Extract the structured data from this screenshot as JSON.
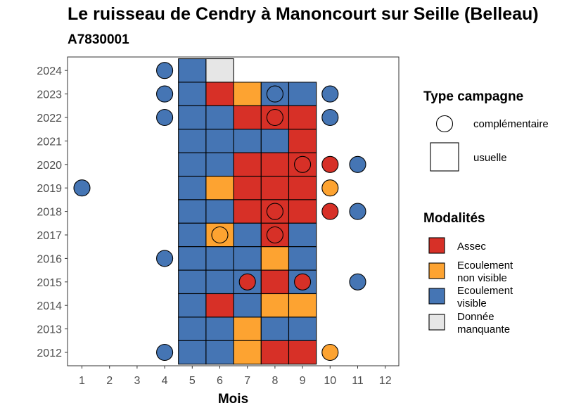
{
  "chart_data": {
    "type": "heatmap",
    "title": "Le ruisseau de Cendry à Manoncourt sur Seille (Belleau)",
    "subtitle": "A7830001",
    "xlabel": "Mois",
    "ylabel": "",
    "x_ticks": [
      "1",
      "2",
      "3",
      "4",
      "5",
      "6",
      "7",
      "8",
      "9",
      "10",
      "11",
      "12"
    ],
    "y_ticks": [
      "2012",
      "2013",
      "2014",
      "2015",
      "2016",
      "2017",
      "2018",
      "2019",
      "2020",
      "2021",
      "2022",
      "2023",
      "2024"
    ],
    "xlim": [
      0.5,
      12.5
    ],
    "ylim": [
      2011.5,
      2024.5
    ],
    "legend_placement": "right",
    "shape_legend": {
      "title": "Type campagne",
      "items": [
        {
          "key": "complementaire",
          "label": "complémentaire",
          "shape": "circle"
        },
        {
          "key": "usuelle",
          "label": "usuelle",
          "shape": "square"
        }
      ]
    },
    "color_legend": {
      "title": "Modalités",
      "items": [
        {
          "key": "assec",
          "label_line1": "Assec",
          "label_line2": "",
          "color": "#d73027"
        },
        {
          "key": "nonvisible",
          "label_line1": "Ecoulement",
          "label_line2": "non visible",
          "color": "#fda331"
        },
        {
          "key": "visible",
          "label_line1": "Ecoulement",
          "label_line2": "visible",
          "color": "#4575b4"
        },
        {
          "key": "manquante",
          "label_line1": "Donnée",
          "label_line2": "manquante",
          "color": "#e6e6e6"
        }
      ]
    },
    "usuelle": [
      {
        "year": 2024,
        "values": {
          "5": "visible",
          "6": "manquante"
        }
      },
      {
        "year": 2023,
        "values": {
          "5": "visible",
          "6": "assec",
          "7": "nonvisible",
          "8": "visible",
          "9": "visible"
        }
      },
      {
        "year": 2022,
        "values": {
          "5": "visible",
          "6": "visible",
          "7": "assec",
          "8": "assec",
          "9": "assec"
        }
      },
      {
        "year": 2021,
        "values": {
          "5": "visible",
          "6": "visible",
          "7": "visible",
          "8": "visible",
          "9": "assec"
        }
      },
      {
        "year": 2020,
        "values": {
          "5": "visible",
          "6": "visible",
          "7": "assec",
          "8": "assec",
          "9": "assec"
        }
      },
      {
        "year": 2019,
        "values": {
          "5": "visible",
          "6": "nonvisible",
          "7": "assec",
          "8": "assec",
          "9": "assec"
        }
      },
      {
        "year": 2018,
        "values": {
          "5": "visible",
          "6": "visible",
          "7": "assec",
          "8": "assec",
          "9": "assec"
        }
      },
      {
        "year": 2017,
        "values": {
          "5": "visible",
          "6": "nonvisible",
          "7": "visible",
          "8": "assec",
          "9": "visible"
        }
      },
      {
        "year": 2016,
        "values": {
          "5": "visible",
          "6": "visible",
          "7": "visible",
          "8": "nonvisible",
          "9": "visible"
        }
      },
      {
        "year": 2015,
        "values": {
          "5": "visible",
          "6": "visible",
          "7": "visible",
          "8": "assec",
          "9": "visible"
        }
      },
      {
        "year": 2014,
        "values": {
          "5": "visible",
          "6": "assec",
          "7": "visible",
          "8": "nonvisible",
          "9": "nonvisible"
        }
      },
      {
        "year": 2013,
        "values": {
          "5": "visible",
          "6": "visible",
          "7": "nonvisible",
          "8": "visible",
          "9": "visible"
        }
      },
      {
        "year": 2012,
        "values": {
          "5": "visible",
          "6": "visible",
          "7": "nonvisible",
          "8": "assec",
          "9": "assec"
        }
      }
    ],
    "complementaire": [
      {
        "year": 2024,
        "month": 4,
        "mod": "visible"
      },
      {
        "year": 2023,
        "month": 4,
        "mod": "visible"
      },
      {
        "year": 2023,
        "month": 8,
        "mod": "visible"
      },
      {
        "year": 2023,
        "month": 10,
        "mod": "visible"
      },
      {
        "year": 2022,
        "month": 4,
        "mod": "visible"
      },
      {
        "year": 2022,
        "month": 8,
        "mod": "assec"
      },
      {
        "year": 2022,
        "month": 10,
        "mod": "visible"
      },
      {
        "year": 2020,
        "month": 9,
        "mod": "assec"
      },
      {
        "year": 2020,
        "month": 10,
        "mod": "assec"
      },
      {
        "year": 2020,
        "month": 11,
        "mod": "visible"
      },
      {
        "year": 2019,
        "month": 1,
        "mod": "visible"
      },
      {
        "year": 2019,
        "month": 10,
        "mod": "nonvisible"
      },
      {
        "year": 2018,
        "month": 8,
        "mod": "assec"
      },
      {
        "year": 2018,
        "month": 10,
        "mod": "assec"
      },
      {
        "year": 2018,
        "month": 11,
        "mod": "visible"
      },
      {
        "year": 2017,
        "month": 6,
        "mod": "nonvisible"
      },
      {
        "year": 2017,
        "month": 8,
        "mod": "assec"
      },
      {
        "year": 2016,
        "month": 4,
        "mod": "visible"
      },
      {
        "year": 2015,
        "month": 7,
        "mod": "assec"
      },
      {
        "year": 2015,
        "month": 9,
        "mod": "assec"
      },
      {
        "year": 2015,
        "month": 11,
        "mod": "visible"
      },
      {
        "year": 2012,
        "month": 4,
        "mod": "visible"
      },
      {
        "year": 2012,
        "month": 10,
        "mod": "nonvisible"
      }
    ]
  }
}
